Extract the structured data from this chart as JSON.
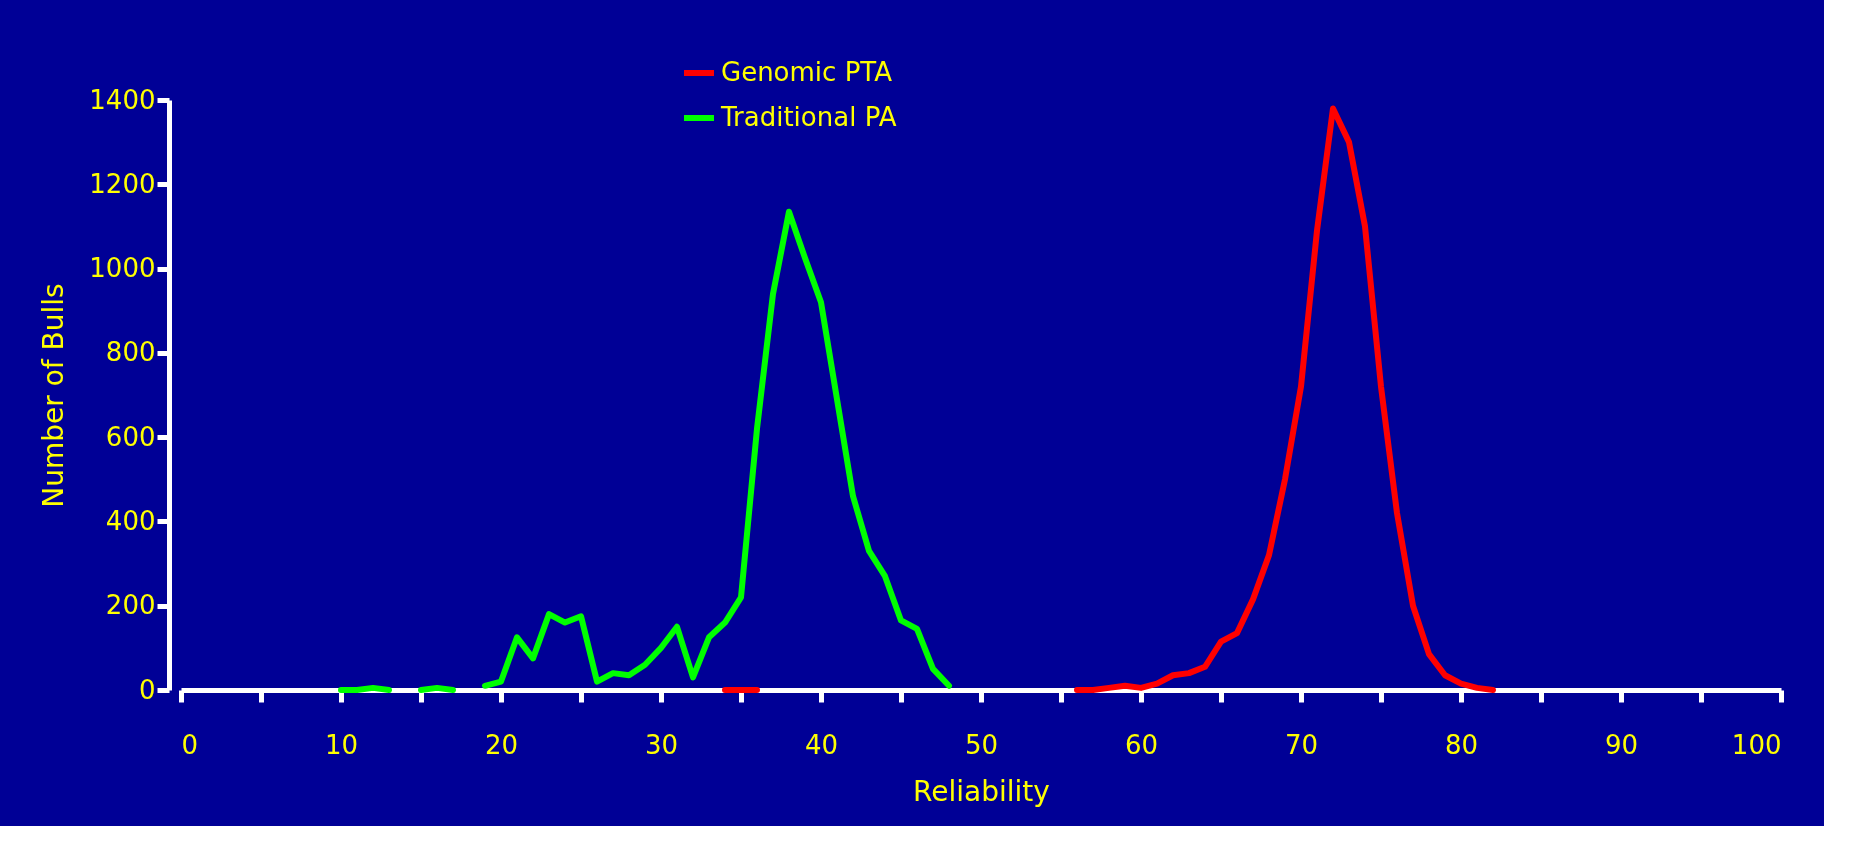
{
  "chart_data": {
    "type": "line",
    "xlabel": "Reliability",
    "ylabel": "Number of Bulls",
    "x": [
      10,
      11,
      12,
      13,
      14,
      15,
      16,
      17,
      18,
      19,
      20,
      21,
      22,
      23,
      24,
      25,
      26,
      27,
      28,
      29,
      30,
      31,
      32,
      33,
      34,
      35,
      36,
      37,
      38,
      39,
      40,
      41,
      42,
      43,
      44,
      45,
      46,
      47,
      48,
      49,
      50,
      51,
      52,
      53,
      54,
      55,
      56,
      57,
      58,
      59,
      60,
      61,
      62,
      63,
      64,
      65,
      66,
      67,
      68,
      69,
      70,
      71,
      72,
      73,
      74,
      75,
      76,
      77,
      78,
      79,
      80,
      81,
      82
    ],
    "series": [
      {
        "name": "Genomic PTA",
        "color": "#ff0000",
        "values": [
          null,
          null,
          null,
          null,
          null,
          null,
          null,
          null,
          null,
          null,
          null,
          null,
          null,
          null,
          null,
          null,
          null,
          null,
          null,
          null,
          null,
          null,
          null,
          null,
          0,
          0,
          0,
          null,
          null,
          null,
          null,
          null,
          null,
          null,
          null,
          null,
          null,
          null,
          null,
          null,
          null,
          null,
          null,
          null,
          null,
          null,
          0,
          0,
          5,
          10,
          5,
          15,
          35,
          40,
          55,
          115,
          135,
          215,
          320,
          500,
          720,
          1090,
          1380,
          1300,
          1100,
          720,
          420,
          200,
          85,
          35,
          15,
          5,
          0
        ]
      },
      {
        "name": "Traditional PA",
        "color": "#00ff00",
        "values": [
          0,
          0,
          5,
          0,
          null,
          0,
          5,
          0,
          null,
          10,
          20,
          125,
          75,
          180,
          160,
          175,
          20,
          40,
          35,
          60,
          100,
          150,
          30,
          125,
          160,
          220,
          620,
          940,
          1135,
          1025,
          920,
          690,
          460,
          330,
          270,
          165,
          145,
          50,
          10,
          null,
          null,
          null,
          null,
          null,
          null,
          null,
          null,
          null,
          null,
          null,
          null,
          null,
          null,
          null,
          null,
          null,
          null,
          null,
          null,
          null,
          null,
          null,
          null,
          null,
          null,
          null,
          null,
          null,
          null,
          null,
          null,
          null,
          null
        ]
      }
    ],
    "xlim": [
      0,
      100
    ],
    "xticks": [
      0,
      {
        "value": 5,
        "label": null
      },
      10,
      {
        "value": 15,
        "label": null
      },
      20,
      {
        "value": 25,
        "label": null
      },
      30,
      {
        "value": 35,
        "label": null
      },
      40,
      {
        "value": 45,
        "label": null
      },
      50,
      {
        "value": 55,
        "label": null
      },
      60,
      {
        "value": 65,
        "label": null
      },
      70,
      {
        "value": 75,
        "label": null
      },
      80,
      {
        "value": 85,
        "label": null
      },
      90,
      {
        "value": 95,
        "label": null
      },
      100
    ],
    "ylim": [
      0,
      1400
    ],
    "yticks": [
      0,
      200,
      400,
      600,
      800,
      1000,
      1200,
      1400
    ],
    "grid": false,
    "legend": "top",
    "marker": "none",
    "line_style": "solid"
  }
}
